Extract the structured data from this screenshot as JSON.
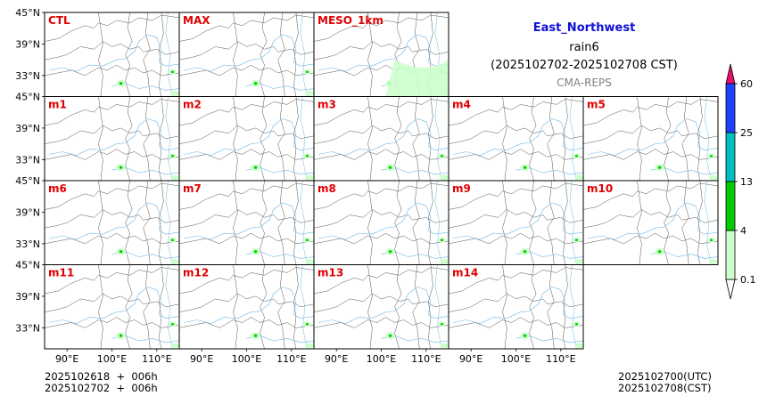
{
  "title": {
    "region": "East_Northwest",
    "variable": "rain6",
    "period": "(2025102702-2025102708 CST)",
    "source": "CMA-REPS"
  },
  "panels": [
    "CTL",
    "MAX",
    "MESO_1km",
    "m1",
    "m2",
    "m3",
    "m4",
    "m5",
    "m6",
    "m7",
    "m8",
    "m9",
    "m10",
    "m11",
    "m12",
    "m13",
    "m14"
  ],
  "axes": {
    "lat_ticks": [
      "45°N",
      "39°N",
      "33°N"
    ],
    "lon_ticks": [
      "90°E",
      "100°E",
      "110°E"
    ]
  },
  "colorbar": {
    "levels": [
      "0.1",
      "4",
      "13",
      "25",
      "60"
    ],
    "colors": [
      "#ccffcc",
      "#00cc00",
      "#00bfbf",
      "#2040ff"
    ],
    "under_color": "#ffffff",
    "over_color": "#e8106a"
  },
  "footer": {
    "init_utc": "2025102618  +  006h",
    "init_cst": "2025102702  +  006h",
    "valid_utc": "2025102700(UTC)",
    "valid_cst": "2025102708(CST)"
  },
  "colors": {
    "title": "#1010d8",
    "panel_label": "#e00000",
    "river": "#6fb8e8",
    "border": "#555555"
  }
}
